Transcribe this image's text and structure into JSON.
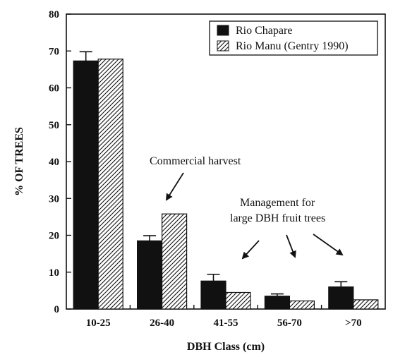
{
  "chart_data": {
    "type": "bar",
    "xlabel": "DBH Class (cm)",
    "ylabel": "% OF TREES",
    "ylim": [
      0,
      80
    ],
    "yticks": [
      0,
      10,
      20,
      30,
      40,
      50,
      60,
      70,
      80
    ],
    "categories": [
      "10-25",
      "26-40",
      "41-55",
      "56-70",
      ">70"
    ],
    "series": [
      {
        "name": "Rio Chapare",
        "fill": "solid",
        "color": "#111111",
        "values": [
          67.3,
          18.5,
          7.6,
          3.5,
          6.0
        ],
        "error": [
          2.5,
          1.4,
          1.8,
          0.6,
          1.4
        ]
      },
      {
        "name": "Rio Manu (Gentry 1990)",
        "fill": "hatched",
        "color": "#111111",
        "values": [
          67.8,
          25.8,
          4.5,
          2.2,
          2.5
        ]
      }
    ],
    "legend": {
      "placement": "top-right"
    },
    "annotations": [
      {
        "id": "commercial-harvest",
        "lines": [
          "Commercial harvest"
        ]
      },
      {
        "id": "management",
        "lines": [
          "Management for",
          "large DBH fruit trees"
        ]
      }
    ]
  }
}
